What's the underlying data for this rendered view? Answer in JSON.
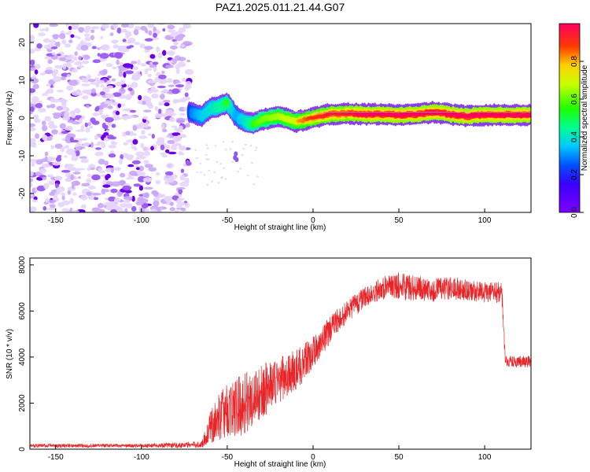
{
  "chart_data": [
    {
      "type": "heatmap",
      "title": "PAZ1.2025.011.21.44.G07",
      "xlabel": "Height of straight line (km)",
      "ylabel": "Frequency (Hz)",
      "xlim": [
        -165,
        127
      ],
      "ylim": [
        -25,
        25
      ],
      "xticks": [
        -150,
        -100,
        -50,
        0,
        50,
        100
      ],
      "yticks": [
        -20,
        -10,
        0,
        10,
        20
      ],
      "colorbar": {
        "label": "Normalized spectral amplitude",
        "range": [
          0,
          1
        ],
        "ticks": [
          "0.0",
          "0.2",
          "0.4",
          "0.6",
          "0.8"
        ],
        "colormap": "rainbow"
      },
      "noise_region_x": [
        -165,
        -72
      ],
      "signal_track": [
        {
          "x": -72,
          "y": 1.5,
          "amp": 0.35
        },
        {
          "x": -65,
          "y": 0.5,
          "amp": 0.45
        },
        {
          "x": -60,
          "y": 2.5,
          "amp": 0.5
        },
        {
          "x": -55,
          "y": 3.0,
          "amp": 0.55
        },
        {
          "x": -50,
          "y": 4.0,
          "amp": 0.6
        },
        {
          "x": -45,
          "y": 0.5,
          "amp": 0.4
        },
        {
          "x": -40,
          "y": -1.0,
          "amp": 0.5
        },
        {
          "x": -35,
          "y": -1.5,
          "amp": 0.6
        },
        {
          "x": -30,
          "y": -0.5,
          "amp": 0.65
        },
        {
          "x": -20,
          "y": 0.5,
          "amp": 0.7
        },
        {
          "x": -10,
          "y": -1.0,
          "amp": 0.75
        },
        {
          "x": 0,
          "y": 0.0,
          "amp": 0.85
        },
        {
          "x": 10,
          "y": 1.0,
          "amp": 0.9
        },
        {
          "x": 20,
          "y": 1.2,
          "amp": 0.9
        },
        {
          "x": 30,
          "y": 1.0,
          "amp": 0.95
        },
        {
          "x": 40,
          "y": 1.0,
          "amp": 0.95
        },
        {
          "x": 50,
          "y": 0.8,
          "amp": 0.95
        },
        {
          "x": 60,
          "y": 1.0,
          "amp": 0.95
        },
        {
          "x": 70,
          "y": 1.5,
          "amp": 0.95
        },
        {
          "x": 80,
          "y": 1.0,
          "amp": 0.95
        },
        {
          "x": 90,
          "y": 0.5,
          "amp": 0.95
        },
        {
          "x": 100,
          "y": 0.8,
          "amp": 0.95
        },
        {
          "x": 110,
          "y": 0.8,
          "amp": 0.95
        },
        {
          "x": 127,
          "y": 0.8,
          "amp": 0.95
        }
      ]
    },
    {
      "type": "line",
      "xlabel": "Height of straight line (km)",
      "ylabel": "SNR (10 * v/v)",
      "xlim": [
        -165,
        127
      ],
      "ylim": [
        0,
        8300
      ],
      "xticks": [
        -150,
        -100,
        -50,
        0,
        50,
        100
      ],
      "yticks": [
        0,
        2000,
        4000,
        6000,
        8000
      ],
      "color": "#e8262a",
      "envelope": {
        "x": [
          -165,
          -100,
          -65,
          -60,
          -55,
          -50,
          -45,
          -40,
          -35,
          -30,
          -20,
          -10,
          0,
          10,
          20,
          30,
          40,
          50,
          60,
          70,
          80,
          90,
          100,
          110,
          112,
          120,
          127
        ],
        "y": [
          150,
          150,
          200,
          900,
          1400,
          1700,
          1800,
          2000,
          2200,
          2500,
          3000,
          3400,
          4200,
          5200,
          6000,
          6600,
          7000,
          7100,
          7000,
          6900,
          7000,
          6900,
          6800,
          6800,
          3800,
          3800,
          3800
        ],
        "spread": [
          80,
          80,
          150,
          700,
          1000,
          1200,
          1300,
          1400,
          1300,
          1200,
          1000,
          900,
          700,
          600,
          500,
          450,
          500,
          600,
          550,
          500,
          500,
          450,
          450,
          450,
          250,
          250,
          250
        ]
      }
    }
  ]
}
